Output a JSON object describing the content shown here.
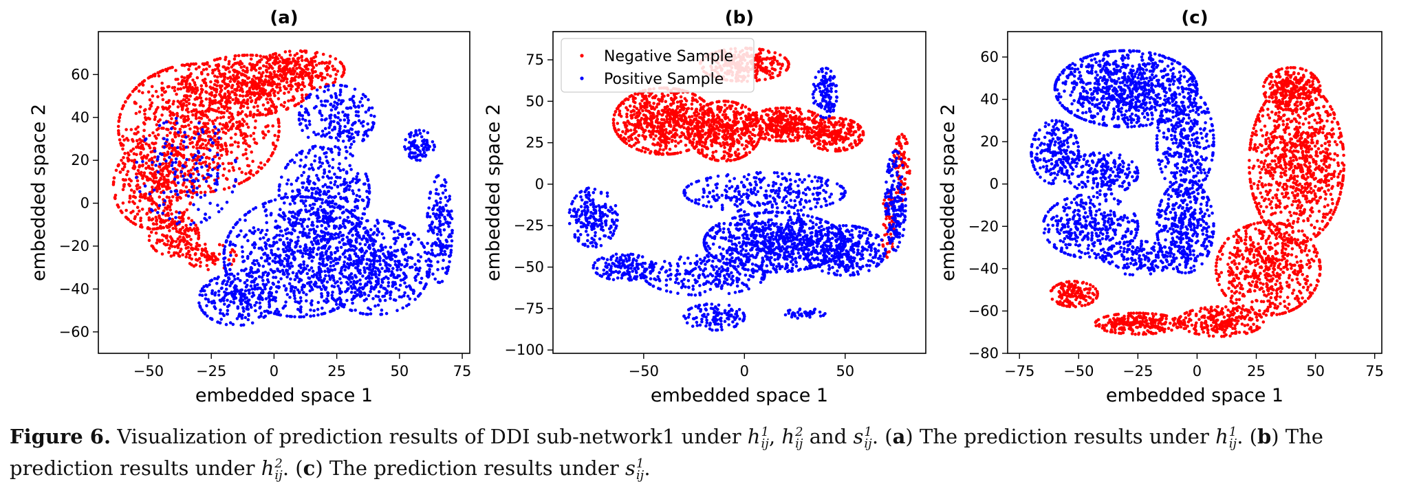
{
  "colors": {
    "negative": "#ff0000",
    "positive": "#0000ff"
  },
  "legend": {
    "placement": "top-left",
    "panel": "b",
    "entries": [
      "Negative Sample",
      "Positive Sample"
    ]
  },
  "chart_data": [
    {
      "type": "scatter",
      "panel": "a",
      "title": "(a)",
      "xlabel": "embedded space 1",
      "ylabel": "embedded space 2",
      "xlim": [
        -70,
        78
      ],
      "ylim": [
        -70,
        80
      ],
      "xticks": [
        -50,
        -25,
        0,
        25,
        50,
        75
      ],
      "yticks": [
        -60,
        -40,
        -20,
        0,
        20,
        40,
        60
      ],
      "series": [
        {
          "name": "Negative Sample",
          "color": "#ff0000",
          "clusters": [
            {
              "cx": -30,
              "cy": 35,
              "rx": 32,
              "ry": 30,
              "n": 900
            },
            {
              "cx": -10,
              "cy": 55,
              "rx": 25,
              "ry": 14,
              "n": 450
            },
            {
              "cx": 10,
              "cy": 62,
              "rx": 18,
              "ry": 9,
              "n": 250
            },
            {
              "cx": -48,
              "cy": 8,
              "rx": 16,
              "ry": 20,
              "n": 350
            },
            {
              "cx": -40,
              "cy": -15,
              "rx": 10,
              "ry": 10,
              "n": 150
            },
            {
              "cx": -25,
              "cy": -25,
              "rx": 10,
              "ry": 6,
              "n": 80
            }
          ]
        },
        {
          "name": "Positive Sample",
          "color": "#0000ff",
          "clusters": [
            {
              "cx": 10,
              "cy": -25,
              "rx": 30,
              "ry": 28,
              "n": 850
            },
            {
              "cx": 40,
              "cy": -30,
              "rx": 22,
              "ry": 22,
              "n": 550
            },
            {
              "cx": 20,
              "cy": 5,
              "rx": 18,
              "ry": 22,
              "n": 350
            },
            {
              "cx": 25,
              "cy": 40,
              "rx": 15,
              "ry": 15,
              "n": 220
            },
            {
              "cx": 58,
              "cy": 27,
              "rx": 6,
              "ry": 7,
              "n": 90
            },
            {
              "cx": 66,
              "cy": -12,
              "rx": 5,
              "ry": 25,
              "n": 170
            },
            {
              "cx": -15,
              "cy": -45,
              "rx": 15,
              "ry": 12,
              "n": 220
            },
            {
              "cx": -35,
              "cy": 15,
              "rx": 20,
              "ry": 25,
              "n": 150
            }
          ]
        }
      ]
    },
    {
      "type": "scatter",
      "panel": "b",
      "title": "(b)",
      "xlabel": "embedded space 1",
      "ylabel": "embedded space 2",
      "xlim": [
        -95,
        90
      ],
      "ylim": [
        -102,
        92
      ],
      "xticks": [
        -50,
        0,
        50
      ],
      "yticks": [
        -100,
        -75,
        -50,
        -25,
        0,
        25,
        50,
        75
      ],
      "series": [
        {
          "name": "Negative Sample",
          "color": "#ff0000",
          "clusters": [
            {
              "cx": -40,
              "cy": 38,
              "rx": 25,
              "ry": 20,
              "n": 700
            },
            {
              "cx": -10,
              "cy": 32,
              "rx": 18,
              "ry": 18,
              "n": 450
            },
            {
              "cx": 20,
              "cy": 36,
              "rx": 20,
              "ry": 10,
              "n": 350
            },
            {
              "cx": 45,
              "cy": 30,
              "rx": 14,
              "ry": 10,
              "n": 250
            },
            {
              "cx": 0,
              "cy": 72,
              "rx": 22,
              "ry": 10,
              "n": 320
            },
            {
              "cx": 78,
              "cy": 10,
              "rx": 4,
              "ry": 20,
              "n": 90
            },
            {
              "cx": 72,
              "cy": -25,
              "rx": 4,
              "ry": 20,
              "n": 60
            }
          ]
        },
        {
          "name": "Positive Sample",
          "color": "#0000ff",
          "clusters": [
            {
              "cx": 15,
              "cy": -35,
              "rx": 35,
              "ry": 18,
              "n": 800
            },
            {
              "cx": 10,
              "cy": -5,
              "rx": 40,
              "ry": 12,
              "n": 300
            },
            {
              "cx": 50,
              "cy": -40,
              "rx": 20,
              "ry": 15,
              "n": 350
            },
            {
              "cx": -20,
              "cy": -55,
              "rx": 30,
              "ry": 12,
              "n": 250
            },
            {
              "cx": -75,
              "cy": -20,
              "rx": 12,
              "ry": 18,
              "n": 200
            },
            {
              "cx": -60,
              "cy": -50,
              "rx": 15,
              "ry": 8,
              "n": 150
            },
            {
              "cx": -15,
              "cy": -80,
              "rx": 15,
              "ry": 8,
              "n": 120
            },
            {
              "cx": 40,
              "cy": 55,
              "rx": 6,
              "ry": 15,
              "n": 120
            },
            {
              "cx": 75,
              "cy": -10,
              "rx": 5,
              "ry": 30,
              "n": 180
            },
            {
              "cx": 30,
              "cy": -78,
              "rx": 10,
              "ry": 3,
              "n": 40
            }
          ]
        }
      ]
    },
    {
      "type": "scatter",
      "panel": "c",
      "title": "(c)",
      "xlabel": "embedded space 1",
      "ylabel": "embedded space 2",
      "xlim": [
        -80,
        78
      ],
      "ylim": [
        -80,
        72
      ],
      "xticks": [
        -75,
        -50,
        -25,
        0,
        25,
        50,
        75
      ],
      "yticks": [
        -80,
        -60,
        -40,
        -20,
        0,
        20,
        40,
        60
      ],
      "series": [
        {
          "name": "Negative Sample",
          "color": "#ff0000",
          "clusters": [
            {
              "cx": 42,
              "cy": 10,
              "rx": 20,
              "ry": 38,
              "n": 1000
            },
            {
              "cx": 30,
              "cy": -40,
              "rx": 22,
              "ry": 22,
              "n": 600
            },
            {
              "cx": 40,
              "cy": 45,
              "rx": 12,
              "ry": 10,
              "n": 250
            },
            {
              "cx": 10,
              "cy": -65,
              "rx": 18,
              "ry": 7,
              "n": 250
            },
            {
              "cx": -25,
              "cy": -66,
              "rx": 18,
              "ry": 5,
              "n": 250
            },
            {
              "cx": -52,
              "cy": -52,
              "rx": 10,
              "ry": 6,
              "n": 150
            }
          ]
        },
        {
          "name": "Positive Sample",
          "color": "#0000ff",
          "clusters": [
            {
              "cx": -30,
              "cy": 45,
              "rx": 30,
              "ry": 18,
              "n": 900
            },
            {
              "cx": -5,
              "cy": 20,
              "rx": 12,
              "ry": 25,
              "n": 350
            },
            {
              "cx": -5,
              "cy": -20,
              "rx": 12,
              "ry": 22,
              "n": 400
            },
            {
              "cx": -60,
              "cy": 15,
              "rx": 10,
              "ry": 15,
              "n": 220
            },
            {
              "cx": -45,
              "cy": -20,
              "rx": 20,
              "ry": 15,
              "n": 350
            },
            {
              "cx": -40,
              "cy": 5,
              "rx": 15,
              "ry": 10,
              "n": 200
            },
            {
              "cx": -25,
              "cy": -35,
              "rx": 15,
              "ry": 8,
              "n": 150
            }
          ]
        }
      ]
    }
  ],
  "caption": {
    "figure_label": "Figure 6.",
    "text1": " Visualization of prediction results of DDI sub-network1 under ",
    "text2": " and ",
    "text3": ". (",
    "text4": ") The prediction results under ",
    "text5": ". (",
    "text6": ") The prediction results under ",
    "text7": ". (",
    "text8": ") The prediction results under ",
    "text9": ".",
    "label_a": "a",
    "label_b": "b",
    "label_c": "c",
    "h": "h",
    "s": "s",
    "sub": "ij",
    "sup1": "1",
    "sup2": "2",
    "comma": ", "
  }
}
